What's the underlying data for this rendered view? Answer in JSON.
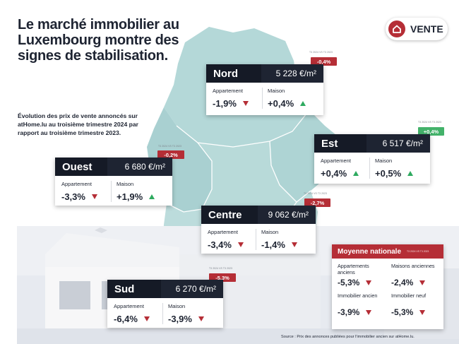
{
  "title": "Le marché immobilier au Luxembourg montre des signes de stabilisation.",
  "subtitle": "Évolution des prix de vente annoncés sur atHome.lu au troisième trimestre 2024 par rapport au troisième trimestre 2023.",
  "badge_label": "VENTE",
  "regions": {
    "nord": {
      "name": "Nord",
      "price": "5 228 €/m²",
      "change": "-0,4%",
      "period": "T3 2024 VS T3 2023",
      "k1": "Appartement",
      "v1": "-1,9%",
      "k2": "Maison",
      "v2": "+0,4%"
    },
    "est": {
      "name": "Est",
      "price": "6 517 €/m²",
      "change": "+0,4%",
      "period": "T3 2024 VS T3 2023",
      "k1": "Appartement",
      "v1": "+0,4%",
      "k2": "Maison",
      "v2": "+0,5%"
    },
    "ouest": {
      "name": "Ouest",
      "price": "6 680 €/m²",
      "change": "-0,2%",
      "period": "T3 2024 VS T3 2023",
      "k1": "Appartement",
      "v1": "-3,3%",
      "k2": "Maison",
      "v2": "+1,9%"
    },
    "centre": {
      "name": "Centre",
      "price": "9 062 €/m²",
      "change": "-2,7%",
      "period": "T3 2024 VS T3 2023",
      "k1": "Appartement",
      "v1": "-3,4%",
      "k2": "Maison",
      "v2": "-1,4%"
    },
    "sud": {
      "name": "Sud",
      "price": "6 270 €/m²",
      "change": "-5,3%",
      "period": "T3 2024 VS T3 2023",
      "k1": "Appartement",
      "v1": "-6,4%",
      "k2": "Maison",
      "v2": "-3,9%"
    }
  },
  "national": {
    "title": "Moyenne nationale",
    "period": "T3 2024 VS T3 2023",
    "items": [
      {
        "label": "Appartements anciens",
        "value": "-5,3%"
      },
      {
        "label": "Maisons anciennes",
        "value": "-2,4%"
      },
      {
        "label": "Immobilier ancien",
        "value": "-3,9%"
      },
      {
        "label": "Immobilier neuf",
        "value": "-5,3%"
      }
    ]
  },
  "source": "Source : Prix des annonces publiées pour l'immobilier ancien sur atHome.lu.",
  "colors": {
    "dark": "#1e2432",
    "red": "#b52e36",
    "green": "#43b26a",
    "map": "#b4d8d8"
  }
}
